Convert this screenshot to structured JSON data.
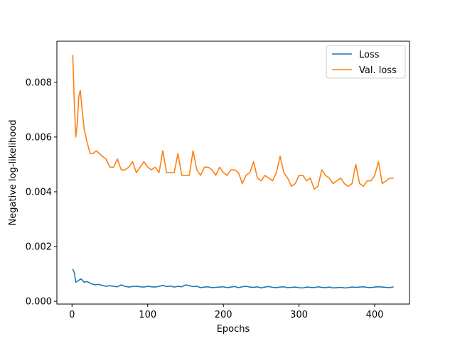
{
  "chart_data": {
    "type": "line",
    "title": "",
    "xlabel": "Epochs",
    "ylabel": "Negative log-likelihood",
    "xlim": [
      -20,
      446
    ],
    "ylim": [
      -0.0001,
      0.0095
    ],
    "xticks": [
      0,
      100,
      200,
      300,
      400
    ],
    "xtick_labels": [
      "0",
      "100",
      "200",
      "300",
      "400"
    ],
    "yticks": [
      0.0,
      0.002,
      0.004,
      0.006,
      0.008
    ],
    "ytick_labels": [
      "0.000",
      "0.002",
      "0.004",
      "0.006",
      "0.008"
    ],
    "grid": false,
    "legend": {
      "position": "top-right",
      "entries": [
        "Loss",
        "Val. loss"
      ]
    },
    "series": [
      {
        "name": "Loss",
        "color": "#1f77b4",
        "x": [
          1,
          3,
          5,
          8,
          12,
          16,
          20,
          25,
          30,
          35,
          40,
          45,
          50,
          55,
          60,
          65,
          70,
          75,
          80,
          85,
          90,
          95,
          100,
          105,
          110,
          115,
          120,
          125,
          130,
          135,
          140,
          145,
          150,
          155,
          160,
          165,
          170,
          175,
          180,
          185,
          190,
          195,
          200,
          205,
          210,
          215,
          220,
          225,
          230,
          235,
          240,
          245,
          250,
          255,
          260,
          265,
          270,
          275,
          280,
          285,
          290,
          295,
          300,
          305,
          310,
          315,
          320,
          325,
          330,
          335,
          340,
          345,
          350,
          355,
          360,
          365,
          370,
          375,
          380,
          385,
          390,
          395,
          400,
          405,
          410,
          415,
          420,
          425
        ],
        "y": [
          0.00118,
          0.00105,
          0.0007,
          0.00075,
          0.00082,
          0.0007,
          0.00072,
          0.00065,
          0.0006,
          0.00062,
          0.00058,
          0.00055,
          0.00057,
          0.00055,
          0.00053,
          0.0006,
          0.00055,
          0.00052,
          0.00054,
          0.00055,
          0.00053,
          0.00052,
          0.00055,
          0.00053,
          0.00052,
          0.00055,
          0.00058,
          0.00054,
          0.00056,
          0.00052,
          0.00055,
          0.00053,
          0.0006,
          0.00057,
          0.00054,
          0.00055,
          0.0005,
          0.00052,
          0.00053,
          0.0005,
          0.00051,
          0.00052,
          0.00053,
          0.0005,
          0.00052,
          0.00054,
          0.0005,
          0.00053,
          0.00055,
          0.00052,
          0.00051,
          0.00053,
          0.00049,
          0.00052,
          0.00054,
          0.00051,
          0.0005,
          0.00052,
          0.00053,
          0.0005,
          0.00051,
          0.00052,
          0.0005,
          0.00049,
          0.00052,
          0.00051,
          0.0005,
          0.00053,
          0.00051,
          0.0005,
          0.00052,
          0.00049,
          0.0005,
          0.00051,
          0.00049,
          0.0005,
          0.00052,
          0.00051,
          0.00052,
          0.00053,
          0.00051,
          0.0005,
          0.00052,
          0.00053,
          0.00052,
          0.00051,
          0.0005,
          0.00053
        ]
      },
      {
        "name": "Val. loss",
        "color": "#ff7f0e",
        "x": [
          1,
          3,
          5,
          7,
          9,
          11,
          13,
          16,
          20,
          24,
          28,
          32,
          36,
          40,
          45,
          50,
          55,
          60,
          65,
          70,
          75,
          80,
          85,
          90,
          95,
          100,
          105,
          110,
          115,
          120,
          125,
          130,
          135,
          140,
          145,
          150,
          155,
          160,
          165,
          170,
          175,
          180,
          185,
          190,
          195,
          200,
          205,
          210,
          215,
          220,
          225,
          230,
          235,
          240,
          245,
          250,
          255,
          260,
          265,
          270,
          275,
          280,
          285,
          290,
          295,
          300,
          305,
          310,
          315,
          320,
          325,
          330,
          335,
          340,
          345,
          350,
          355,
          360,
          365,
          370,
          375,
          380,
          385,
          390,
          395,
          400,
          405,
          410,
          415,
          420,
          425
        ],
        "y": [
          0.009,
          0.0073,
          0.006,
          0.0065,
          0.0075,
          0.0077,
          0.0071,
          0.0063,
          0.0058,
          0.0054,
          0.0054,
          0.0055,
          0.0054,
          0.0053,
          0.0052,
          0.0049,
          0.0049,
          0.0052,
          0.0048,
          0.0048,
          0.0049,
          0.0051,
          0.0047,
          0.0049,
          0.0051,
          0.0049,
          0.0048,
          0.0049,
          0.0047,
          0.0055,
          0.0047,
          0.0047,
          0.0047,
          0.0054,
          0.0046,
          0.0046,
          0.0046,
          0.0055,
          0.0048,
          0.0046,
          0.0049,
          0.0049,
          0.0048,
          0.0046,
          0.0049,
          0.0047,
          0.0046,
          0.0048,
          0.0048,
          0.0047,
          0.0043,
          0.0046,
          0.0047,
          0.0051,
          0.0045,
          0.0044,
          0.0046,
          0.0045,
          0.0044,
          0.0047,
          0.0053,
          0.0047,
          0.0045,
          0.0042,
          0.0043,
          0.0046,
          0.0046,
          0.0044,
          0.0045,
          0.0041,
          0.0042,
          0.0048,
          0.0046,
          0.0045,
          0.0043,
          0.0044,
          0.0045,
          0.0043,
          0.0042,
          0.0043,
          0.005,
          0.0043,
          0.0042,
          0.0044,
          0.0044,
          0.0046,
          0.0051,
          0.0043,
          0.0044,
          0.0045,
          0.0045
        ]
      }
    ]
  }
}
